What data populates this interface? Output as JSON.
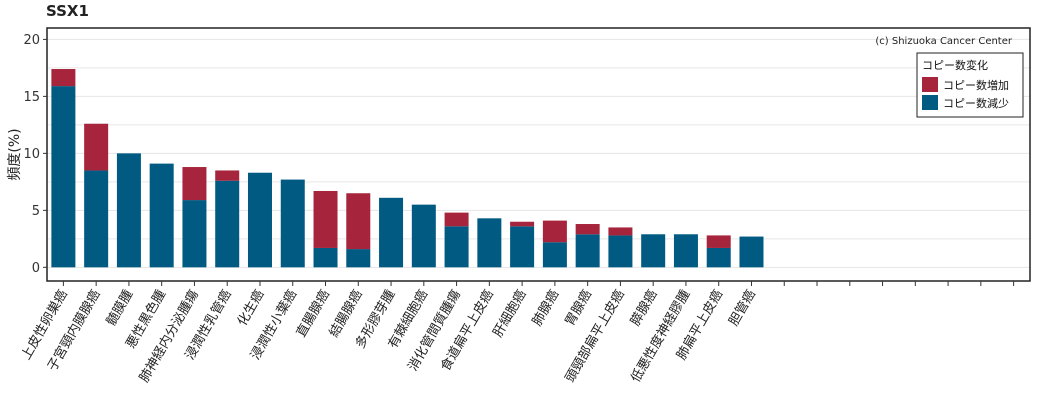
{
  "chart_data": {
    "type": "bar",
    "title": "SSX1",
    "ylabel": "頻度(%)",
    "xlabel": "",
    "ylim": [
      -1.2,
      21
    ],
    "yticks": [
      0,
      5,
      10,
      15,
      20
    ],
    "copyright": "(c) Shizuoka Cancer Center",
    "legend": {
      "title": "コピー数変化",
      "position": "top-right",
      "entries": [
        "コピー数増加",
        "コピー数減少"
      ]
    },
    "colors": {
      "gain": "#A6243C",
      "loss": "#005A82"
    },
    "categories": [
      "上皮性卵巣癌",
      "子宮頸内膜腺癌",
      "髄膜腫",
      "悪性黒色腫",
      "肺神経内分泌腫瘍",
      "浸潤性乳管癌",
      "化生癌",
      "浸潤性小葉癌",
      "直腸腺癌",
      "結腸腺癌",
      "多形膠芽腫",
      "有棘細胞癌",
      "消化管間質腫瘍",
      "食道扁平上皮癌",
      "肝細胞癌",
      "肺腺癌",
      "胃腺癌",
      "頭頸部扁平上皮癌",
      "膵腺癌",
      "低悪性度神経膠腫",
      "肺扁平上皮癌",
      "胆管癌"
    ],
    "slots": 30,
    "series": [
      {
        "name": "コピー数減少",
        "values": [
          15.9,
          8.5,
          10.0,
          9.1,
          5.9,
          7.6,
          8.3,
          7.7,
          1.7,
          1.6,
          6.1,
          5.5,
          3.6,
          4.3,
          3.6,
          2.2,
          2.9,
          2.8,
          2.9,
          2.9,
          1.7,
          2.7
        ]
      },
      {
        "name": "コピー数増加",
        "values": [
          1.5,
          4.1,
          0,
          0,
          2.9,
          0.9,
          0,
          0,
          5.0,
          4.9,
          0,
          0,
          1.2,
          0,
          0.4,
          1.9,
          0.9,
          0.7,
          0,
          0,
          1.1,
          0
        ]
      }
    ]
  }
}
